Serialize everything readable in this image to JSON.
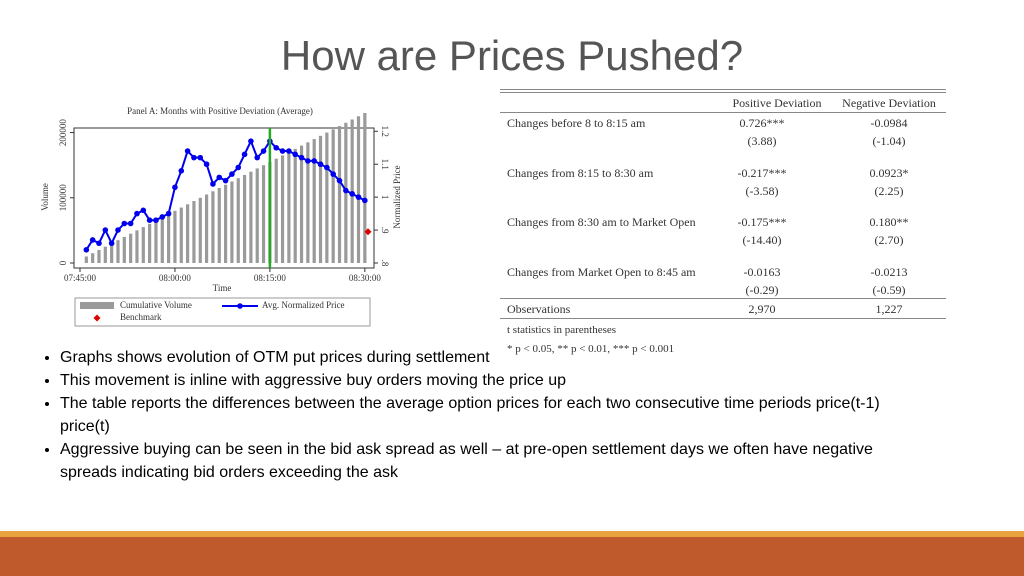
{
  "title": "How are Prices Pushed?",
  "chart_data": {
    "type": "bar-line",
    "title": "Panel A: Months with Positive Deviation (Average)",
    "x_label": "Time",
    "y_label": "Volume",
    "y2_label": "Normalized Price",
    "x": [
      "07:46:00",
      "07:47:00",
      "07:48:00",
      "07:49:00",
      "07:50:00",
      "07:51:00",
      "07:52:00",
      "07:53:00",
      "07:54:00",
      "07:55:00",
      "07:56:00",
      "07:57:00",
      "07:58:00",
      "07:59:00",
      "08:00:00",
      "08:01:00",
      "08:02:00",
      "08:03:00",
      "08:04:00",
      "08:05:00",
      "08:06:00",
      "08:07:00",
      "08:08:00",
      "08:09:00",
      "08:10:00",
      "08:11:00",
      "08:12:00",
      "08:13:00",
      "08:14:00",
      "08:15:00",
      "08:16:00",
      "08:17:00",
      "08:18:00",
      "08:19:00",
      "08:20:00",
      "08:21:00",
      "08:22:00",
      "08:23:00",
      "08:24:00",
      "08:25:00",
      "08:26:00",
      "08:27:00",
      "08:28:00",
      "08:29:00",
      "08:30:00"
    ],
    "xlim": [
      "07:45:00",
      "08:30:30"
    ],
    "xticks": [
      "07:45:00",
      "08:00:00",
      "08:15:00",
      "08:30:00"
    ],
    "series": [
      {
        "name": "Cumulative Volume",
        "color": "#9a9a9a",
        "values": [
          10000,
          15000,
          20000,
          25000,
          30000,
          35000,
          40000,
          45000,
          50000,
          55000,
          60000,
          65000,
          70000,
          75000,
          80000,
          85000,
          90000,
          95000,
          100000,
          105000,
          110000,
          115000,
          120000,
          125000,
          130000,
          135000,
          140000,
          145000,
          150000,
          155000,
          160000,
          165000,
          170000,
          175000,
          180000,
          185000,
          190000,
          195000,
          200000,
          205000,
          210000,
          215000,
          220000,
          225000,
          230000
        ]
      },
      {
        "name": "Avg. Normalized Price",
        "color": "#0000ee",
        "axis": "y2",
        "values": [
          0.84,
          0.87,
          0.86,
          0.9,
          0.86,
          0.9,
          0.92,
          0.92,
          0.95,
          0.96,
          0.93,
          0.93,
          0.94,
          0.95,
          1.03,
          1.08,
          1.14,
          1.12,
          1.12,
          1.1,
          1.04,
          1.06,
          1.05,
          1.07,
          1.09,
          1.13,
          1.17,
          1.12,
          1.14,
          1.17,
          1.15,
          1.14,
          1.14,
          1.13,
          1.12,
          1.11,
          1.11,
          1.1,
          1.09,
          1.07,
          1.05,
          1.02,
          1.01,
          1.0,
          0.99
        ]
      }
    ],
    "benchmark": {
      "name": "Benchmark",
      "color": "#dd0000",
      "x": "08:30:30",
      "value": 0.895
    },
    "marker_line": {
      "x": "08:15:00",
      "color": "#22aa22"
    },
    "ylim": [
      0,
      207000
    ],
    "yticks": [
      0,
      100000,
      200000
    ],
    "y2lim": [
      0.8,
      1.21
    ],
    "y2ticks": [
      {
        "value": 0.8,
        "label": ".8"
      },
      {
        "value": 0.9,
        "label": ".9"
      },
      1,
      1.1,
      1.2
    ]
  },
  "table": {
    "header": [
      "Positive Deviation",
      "Negative Deviation"
    ],
    "rows": [
      {
        "label": "Changes before 8 to 8:15 am",
        "values": [
          "0.726***",
          "-0.0984"
        ],
        "t": [
          "(3.88)",
          "(-1.04)"
        ]
      },
      {
        "label": "Changes from 8:15 to 8:30 am",
        "values": [
          "-0.217***",
          "0.0923*"
        ],
        "t": [
          "(-3.58)",
          "(2.25)"
        ]
      },
      {
        "label": "Changes from 8:30 am to Market Open",
        "values": [
          "-0.175***",
          "0.180**"
        ],
        "t": [
          "(-14.40)",
          "(2.70)"
        ]
      },
      {
        "label": "Changes from Market Open to 8:45 am",
        "values": [
          "-0.0163",
          "-0.0213"
        ],
        "t": [
          "(-0.29)",
          "(-0.59)"
        ]
      }
    ],
    "observations": {
      "label": "Observations",
      "values": [
        "2,970",
        "1,227"
      ]
    },
    "notes": [
      "t statistics in parentheses",
      "* p < 0.05, ** p < 0.01, *** p < 0.001"
    ]
  },
  "bullets": [
    "Graphs shows evolution of OTM put prices during settlement",
    "This movement is inline with aggressive buy orders moving the price up",
    "The table reports the differences between the average option prices for each two consecutive time periods price(t-1) price(t)",
    "Aggressive buying can be seen in the bid ask spread as well – at pre-open settlement days we often have negative spreads indicating bid orders exceeding the ask"
  ]
}
